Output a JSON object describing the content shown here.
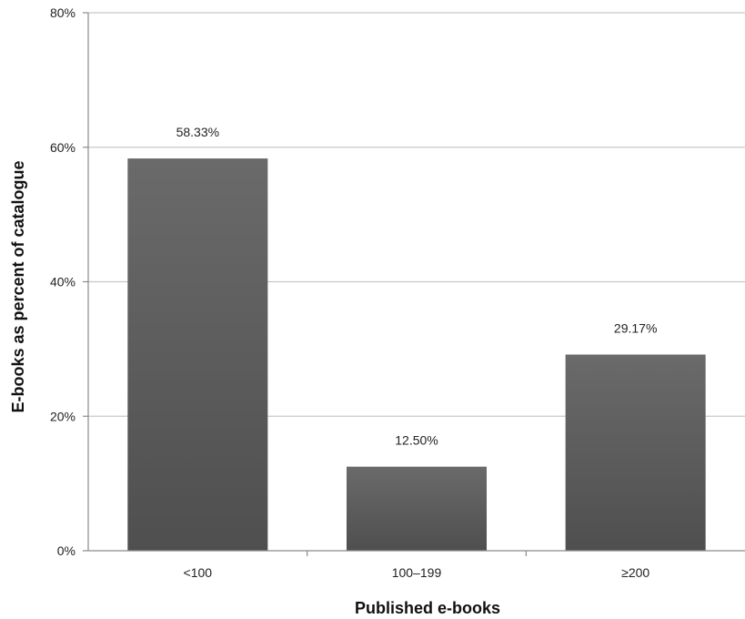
{
  "chart_data": {
    "type": "bar",
    "title": "",
    "xlabel": "Published e-books",
    "ylabel": "E-books as percent of catalogue",
    "categories": [
      "<100",
      "100–199",
      "≥200"
    ],
    "values": [
      58.33,
      12.5,
      29.17
    ],
    "data_labels": [
      "58.33%",
      "12.50%",
      "29.17%"
    ],
    "ylim": [
      0,
      80
    ],
    "yticks": [
      0,
      20,
      40,
      60,
      80
    ],
    "ytick_labels": [
      "0%",
      "20%",
      "40%",
      "60%",
      "80%"
    ],
    "grid": true,
    "legend": "none",
    "bar_color": "#5f5f5f",
    "grid_color": "#c8c8c8",
    "axis_color": "#8a8a8a"
  }
}
